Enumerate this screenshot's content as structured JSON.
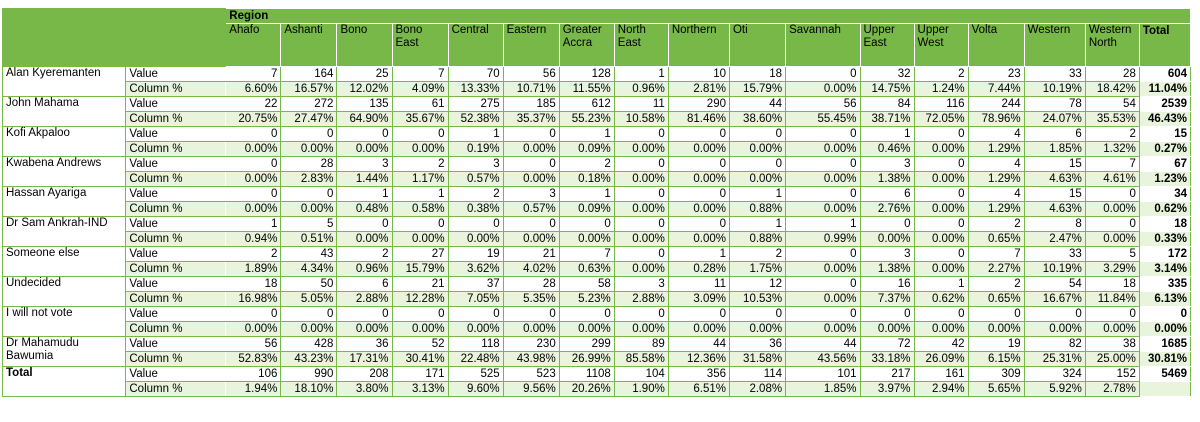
{
  "table": {
    "region_label": "Region",
    "total_label": "Total",
    "regions": [
      "Ahafo",
      "Ashanti",
      "Bono",
      "Bono East",
      "Central",
      "Eastern",
      "Greater Accra",
      "North East",
      "Northern",
      "Oti",
      "Savannah",
      "Upper East",
      "Upper West",
      "Volta",
      "Western",
      "Western North"
    ],
    "value_label": "Value",
    "pct_label": "Column %",
    "rows": [
      {
        "name": "Alan Kyeremanten",
        "values": [
          "7",
          "164",
          "25",
          "7",
          "70",
          "56",
          "128",
          "1",
          "10",
          "18",
          "0",
          "32",
          "2",
          "23",
          "33",
          "28"
        ],
        "pcts": [
          "6.60%",
          "16.57%",
          "12.02%",
          "4.09%",
          "13.33%",
          "10.71%",
          "11.55%",
          "0.96%",
          "2.81%",
          "15.79%",
          "0.00%",
          "14.75%",
          "1.24%",
          "7.44%",
          "10.19%",
          "18.42%"
        ],
        "total_value": "604",
        "total_pct": "11.04%"
      },
      {
        "name": "John Mahama",
        "values": [
          "22",
          "272",
          "135",
          "61",
          "275",
          "185",
          "612",
          "11",
          "290",
          "44",
          "56",
          "84",
          "116",
          "244",
          "78",
          "54"
        ],
        "pcts": [
          "20.75%",
          "27.47%",
          "64.90%",
          "35.67%",
          "52.38%",
          "35.37%",
          "55.23%",
          "10.58%",
          "81.46%",
          "38.60%",
          "55.45%",
          "38.71%",
          "72.05%",
          "78.96%",
          "24.07%",
          "35.53%"
        ],
        "total_value": "2539",
        "total_pct": "46.43%"
      },
      {
        "name": "Kofi Akpaloo",
        "values": [
          "0",
          "0",
          "0",
          "0",
          "1",
          "0",
          "1",
          "0",
          "0",
          "0",
          "0",
          "1",
          "0",
          "4",
          "6",
          "2"
        ],
        "pcts": [
          "0.00%",
          "0.00%",
          "0.00%",
          "0.00%",
          "0.19%",
          "0.00%",
          "0.09%",
          "0.00%",
          "0.00%",
          "0.00%",
          "0.00%",
          "0.46%",
          "0.00%",
          "1.29%",
          "1.85%",
          "1.32%"
        ],
        "total_value": "15",
        "total_pct": "0.27%"
      },
      {
        "name": "Kwabena Andrews",
        "values": [
          "0",
          "28",
          "3",
          "2",
          "3",
          "0",
          "2",
          "0",
          "0",
          "0",
          "0",
          "3",
          "0",
          "4",
          "15",
          "7"
        ],
        "pcts": [
          "0.00%",
          "2.83%",
          "1.44%",
          "1.17%",
          "0.57%",
          "0.00%",
          "0.18%",
          "0.00%",
          "0.00%",
          "0.00%",
          "0.00%",
          "1.38%",
          "0.00%",
          "1.29%",
          "4.63%",
          "4.61%"
        ],
        "total_value": "67",
        "total_pct": "1.23%"
      },
      {
        "name": "Hassan Ayariga",
        "values": [
          "0",
          "0",
          "1",
          "1",
          "2",
          "3",
          "1",
          "0",
          "0",
          "1",
          "0",
          "6",
          "0",
          "4",
          "15",
          "0"
        ],
        "pcts": [
          "0.00%",
          "0.00%",
          "0.48%",
          "0.58%",
          "0.38%",
          "0.57%",
          "0.09%",
          "0.00%",
          "0.00%",
          "0.88%",
          "0.00%",
          "2.76%",
          "0.00%",
          "1.29%",
          "4.63%",
          "0.00%"
        ],
        "total_value": "34",
        "total_pct": "0.62%"
      },
      {
        "name": "Dr Sam Ankrah-IND",
        "values": [
          "1",
          "5",
          "0",
          "0",
          "0",
          "0",
          "0",
          "0",
          "0",
          "1",
          "1",
          "0",
          "0",
          "2",
          "8",
          "0"
        ],
        "pcts": [
          "0.94%",
          "0.51%",
          "0.00%",
          "0.00%",
          "0.00%",
          "0.00%",
          "0.00%",
          "0.00%",
          "0.00%",
          "0.88%",
          "0.99%",
          "0.00%",
          "0.00%",
          "0.65%",
          "2.47%",
          "0.00%"
        ],
        "total_value": "18",
        "total_pct": "0.33%"
      },
      {
        "name": "Someone else",
        "values": [
          "2",
          "43",
          "2",
          "27",
          "19",
          "21",
          "7",
          "0",
          "1",
          "2",
          "0",
          "3",
          "0",
          "7",
          "33",
          "5"
        ],
        "pcts": [
          "1.89%",
          "4.34%",
          "0.96%",
          "15.79%",
          "3.62%",
          "4.02%",
          "0.63%",
          "0.00%",
          "0.28%",
          "1.75%",
          "0.00%",
          "1.38%",
          "0.00%",
          "2.27%",
          "10.19%",
          "3.29%"
        ],
        "total_value": "172",
        "total_pct": "3.14%"
      },
      {
        "name": "Undecided",
        "values": [
          "18",
          "50",
          "6",
          "21",
          "37",
          "28",
          "58",
          "3",
          "11",
          "12",
          "0",
          "16",
          "1",
          "2",
          "54",
          "18"
        ],
        "pcts": [
          "16.98%",
          "5.05%",
          "2.88%",
          "12.28%",
          "7.05%",
          "5.35%",
          "5.23%",
          "2.88%",
          "3.09%",
          "10.53%",
          "0.00%",
          "7.37%",
          "0.62%",
          "0.65%",
          "16.67%",
          "11.84%"
        ],
        "total_value": "335",
        "total_pct": "6.13%"
      },
      {
        "name": "I will not vote",
        "values": [
          "0",
          "0",
          "0",
          "0",
          "0",
          "0",
          "0",
          "0",
          "0",
          "0",
          "0",
          "0",
          "0",
          "0",
          "0",
          "0"
        ],
        "pcts": [
          "0.00%",
          "0.00%",
          "0.00%",
          "0.00%",
          "0.00%",
          "0.00%",
          "0.00%",
          "0.00%",
          "0.00%",
          "0.00%",
          "0.00%",
          "0.00%",
          "0.00%",
          "0.00%",
          "0.00%",
          "0.00%"
        ],
        "total_value": "0",
        "total_pct": "0.00%"
      },
      {
        "name": "Dr Mahamudu Bawumia",
        "values": [
          "56",
          "428",
          "36",
          "52",
          "118",
          "230",
          "299",
          "89",
          "44",
          "36",
          "44",
          "72",
          "42",
          "19",
          "82",
          "38"
        ],
        "pcts": [
          "52.83%",
          "43.23%",
          "17.31%",
          "30.41%",
          "22.48%",
          "43.98%",
          "26.99%",
          "85.58%",
          "12.36%",
          "31.58%",
          "43.56%",
          "33.18%",
          "26.09%",
          "6.15%",
          "25.31%",
          "25.00%"
        ],
        "total_value": "1685",
        "total_pct": "30.81%"
      },
      {
        "name": "Total",
        "bold": true,
        "values": [
          "106",
          "990",
          "208",
          "171",
          "525",
          "523",
          "1108",
          "104",
          "356",
          "114",
          "101",
          "217",
          "161",
          "309",
          "324",
          "152"
        ],
        "pcts": [
          "1.94%",
          "18.10%",
          "3.80%",
          "3.13%",
          "9.60%",
          "9.56%",
          "20.26%",
          "1.90%",
          "6.51%",
          "2.08%",
          "1.85%",
          "3.97%",
          "2.94%",
          "5.65%",
          "5.92%",
          "2.78%"
        ],
        "total_value": "5469",
        "total_pct": ""
      }
    ]
  }
}
